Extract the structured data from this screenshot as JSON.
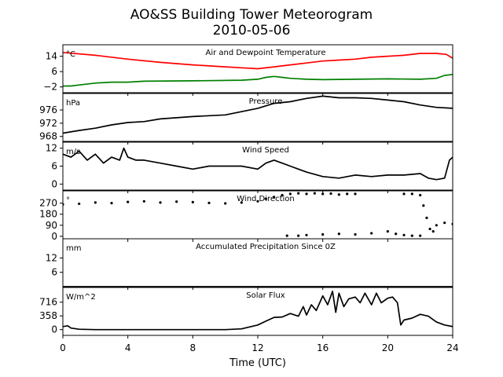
{
  "figure": {
    "title": "AO&SS Building Tower Meteorogram",
    "subtitle": "2010-05-06",
    "xlabel": "Time (UTC)",
    "xticks": [
      "0",
      "4",
      "8",
      "12",
      "16",
      "20",
      "24"
    ]
  },
  "chart_data": [
    {
      "type": "line",
      "title": "Air and Dewpoint Temperature",
      "ylabel": "°C",
      "xlim": [
        0,
        24
      ],
      "ylim": [
        -5,
        20
      ],
      "yticks": [
        -2,
        6,
        14
      ],
      "ytick_labels": [
        "−2",
        "6",
        "14"
      ],
      "series": [
        {
          "color": "#ff0000",
          "x": [
            0,
            2,
            4,
            6,
            8,
            10,
            11,
            12,
            13,
            14,
            15,
            16,
            17,
            18,
            19,
            20,
            21,
            22,
            23,
            23.6,
            24
          ],
          "y": [
            16,
            14.5,
            12.5,
            10.8,
            9.5,
            8.5,
            8,
            7.5,
            8.5,
            9.5,
            10.5,
            11.5,
            12,
            12.5,
            13.5,
            14,
            14.5,
            15.5,
            15.5,
            15,
            13
          ]
        },
        {
          "color": "#008000",
          "x": [
            0,
            0.5,
            1,
            2,
            3,
            3.5,
            4,
            5,
            8,
            11,
            12,
            12.5,
            13,
            13.5,
            14,
            15,
            16,
            18,
            20,
            22,
            23,
            23.5,
            24
          ],
          "y": [
            -1.5,
            -1.5,
            -1,
            0,
            0.5,
            0.5,
            0.5,
            1,
            1.2,
            1.5,
            2,
            3,
            3.5,
            3,
            2.5,
            2,
            1.8,
            2,
            2.2,
            2,
            2.5,
            4,
            4.5
          ]
        }
      ]
    },
    {
      "type": "line",
      "title": "Pressure",
      "ylabel": "hPa",
      "xlim": [
        0,
        24
      ],
      "ylim": [
        966.5,
        981
      ],
      "yticks": [
        968,
        972,
        976
      ],
      "ytick_labels": [
        "968",
        "972",
        "976"
      ],
      "series": [
        {
          "color": "#000000",
          "x": [
            0,
            1,
            2,
            3,
            4,
            5,
            6,
            8,
            10,
            12,
            13,
            14,
            15,
            16,
            17,
            18,
            19,
            20,
            21,
            22,
            23,
            24
          ],
          "y": [
            969,
            969.8,
            970.5,
            971.5,
            972.2,
            972.5,
            973.3,
            974,
            974.5,
            976.5,
            978,
            978.5,
            979.5,
            980.2,
            979.7,
            979.7,
            979.5,
            979,
            978.5,
            977.5,
            976.8,
            976.5
          ]
        }
      ]
    },
    {
      "type": "line",
      "title": "Wind Speed",
      "ylabel": "m/s",
      "xlim": [
        0,
        24
      ],
      "ylim": [
        -2,
        14
      ],
      "yticks": [
        0,
        6,
        12
      ],
      "ytick_labels": [
        "0",
        "6",
        "12"
      ],
      "series": [
        {
          "color": "#000000",
          "x": [
            0,
            0.5,
            1,
            1.5,
            2,
            2.5,
            3,
            3.5,
            3.75,
            4,
            4.5,
            5,
            6,
            7,
            8,
            9,
            10,
            11,
            12,
            12.5,
            13,
            13.5,
            14,
            15,
            16,
            17,
            18,
            19,
            20,
            21,
            22,
            22.5,
            23,
            23.5,
            23.8,
            24
          ],
          "y": [
            10,
            9,
            11,
            8,
            10,
            7,
            9,
            8,
            12,
            9,
            8,
            8,
            7,
            6,
            5,
            6,
            6,
            6,
            5,
            7,
            8,
            7,
            6,
            4,
            2.5,
            2,
            3,
            2.5,
            3,
            3,
            3.5,
            2,
            1.5,
            2,
            8,
            9
          ]
        }
      ]
    },
    {
      "type": "scatter",
      "title": "Wind Direction",
      "ylabel": "°",
      "xlim": [
        0,
        24
      ],
      "ylim": [
        -20,
        370
      ],
      "yticks": [
        0,
        90,
        180,
        270
      ],
      "ytick_labels": [
        "0",
        "90",
        "180",
        "270"
      ],
      "series": [
        {
          "color": "#000000",
          "x": [
            0,
            1,
            2,
            3,
            4,
            5,
            6,
            7,
            8,
            9,
            10,
            11,
            12,
            12.5,
            13,
            13.5,
            14,
            14.5,
            15,
            15.5,
            16,
            16.5,
            17,
            17.5,
            18,
            21,
            21.5,
            22,
            22.2,
            22.4,
            22.6,
            22.8,
            23,
            23.5,
            24
          ],
          "y": [
            260,
            265,
            275,
            270,
            280,
            285,
            275,
            282,
            278,
            272,
            268,
            275,
            285,
            305,
            320,
            335,
            345,
            350,
            345,
            350,
            345,
            348,
            340,
            345,
            345,
            345,
            345,
            335,
            250,
            150,
            60,
            40,
            90,
            110,
            100
          ]
        },
        {
          "color": "#000000",
          "x": [
            13.8,
            14.5,
            15,
            16,
            17,
            18,
            19,
            20,
            20.5,
            21,
            21.5,
            22
          ],
          "y": [
            5,
            5,
            10,
            15,
            20,
            15,
            25,
            40,
            20,
            10,
            5,
            5
          ]
        }
      ]
    },
    {
      "type": "line",
      "title": "Accumulated Precipitation Since 0Z",
      "ylabel": "mm",
      "xlim": [
        0,
        24
      ],
      "ylim": [
        0,
        20
      ],
      "yticks": [
        6,
        12
      ],
      "ytick_labels": [
        "6",
        "12"
      ],
      "series": [
        {
          "color": "#000000",
          "x": [
            0,
            24
          ],
          "y": [
            0,
            0
          ]
        }
      ]
    },
    {
      "type": "line",
      "title": "Solar Flux",
      "ylabel": "W/m^2",
      "xlim": [
        0,
        24
      ],
      "ylim": [
        -150,
        1100
      ],
      "yticks": [
        0,
        358,
        716
      ],
      "ytick_labels": [
        "0",
        "358",
        "716"
      ],
      "series": [
        {
          "color": "#000000",
          "x": [
            0,
            0.3,
            0.5,
            1,
            2,
            4,
            6,
            8,
            10,
            11,
            12,
            12.5,
            13,
            13.5,
            14,
            14.5,
            14.8,
            15,
            15.3,
            15.6,
            16,
            16.3,
            16.6,
            16.8,
            17,
            17.3,
            17.6,
            18,
            18.3,
            18.6,
            19,
            19.3,
            19.6,
            20,
            20.3,
            20.6,
            20.8,
            21,
            21.5,
            22,
            22.5,
            23,
            23.5,
            24
          ],
          "y": [
            80,
            100,
            40,
            10,
            0,
            0,
            0,
            0,
            0,
            20,
            120,
            220,
            320,
            330,
            420,
            350,
            600,
            380,
            650,
            500,
            880,
            650,
            1000,
            450,
            950,
            600,
            800,
            850,
            700,
            950,
            650,
            950,
            700,
            820,
            850,
            700,
            120,
            250,
            300,
            400,
            350,
            200,
            120,
            80
          ]
        }
      ]
    }
  ]
}
